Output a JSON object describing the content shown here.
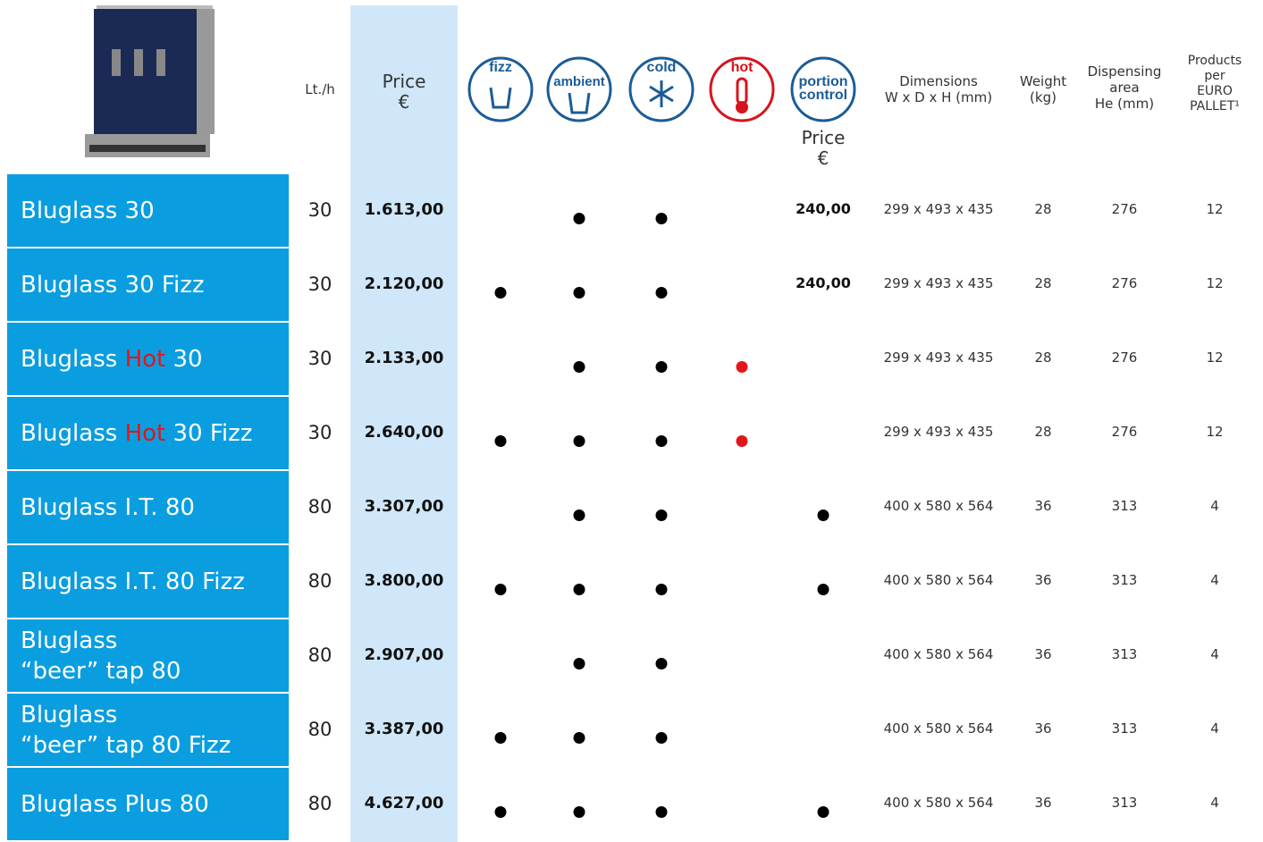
{
  "header": {
    "lt_h": "Lt./h",
    "price": [
      "Price",
      "€"
    ],
    "icons": [
      "fizz",
      "ambient",
      "cold",
      "hot",
      [
        "portion",
        "control"
      ]
    ],
    "portion_price": [
      "Price",
      "€"
    ],
    "dimensions": [
      "Dimensions",
      "W x D x H (mm)"
    ],
    "weight": [
      "Weight",
      "(kg)"
    ],
    "area": [
      "Dispensing",
      "area",
      "He (mm)"
    ],
    "pallet": [
      "Products",
      "per",
      "EURO",
      "PALLET¹"
    ]
  },
  "rows": [
    {
      "name": [
        [
          "Bluglass 30"
        ]
      ],
      "lt_h": "30",
      "price": "1.613,00",
      "features": [
        false,
        true,
        true,
        false
      ],
      "portion": "240,00",
      "dimensions": "299 x 493 x 435",
      "weight": "28",
      "area": "276",
      "pallet": "12"
    },
    {
      "name": [
        [
          "Bluglass 30 Fizz"
        ]
      ],
      "lt_h": "30",
      "price": "2.120,00",
      "features": [
        true,
        true,
        true,
        false
      ],
      "portion": "240,00",
      "dimensions": "299 x 493 x 435",
      "weight": "28",
      "area": "276",
      "pallet": "12"
    },
    {
      "name": [
        [
          "Bluglass ",
          "Hot",
          " 30"
        ]
      ],
      "lt_h": "30",
      "price": "2.133,00",
      "features": [
        false,
        true,
        true,
        true
      ],
      "portion": false,
      "dimensions": "299 x 493 x 435",
      "weight": "28",
      "area": "276",
      "pallet": "12"
    },
    {
      "name": [
        [
          "Bluglass ",
          "Hot",
          " 30 Fizz"
        ]
      ],
      "lt_h": "30",
      "price": "2.640,00",
      "features": [
        true,
        true,
        true,
        true
      ],
      "portion": false,
      "dimensions": "299 x 493 x 435",
      "weight": "28",
      "area": "276",
      "pallet": "12"
    },
    {
      "name": [
        [
          "Bluglass I.T. 80"
        ]
      ],
      "lt_h": "80",
      "price": "3.307,00",
      "features": [
        false,
        true,
        true,
        false
      ],
      "portion": true,
      "dimensions": "400 x 580 x 564",
      "weight": "36",
      "area": "313",
      "pallet": "4"
    },
    {
      "name": [
        [
          "Bluglass I.T. 80 Fizz"
        ]
      ],
      "lt_h": "80",
      "price": "3.800,00",
      "features": [
        true,
        true,
        true,
        false
      ],
      "portion": true,
      "dimensions": "400 x 580 x 564",
      "weight": "36",
      "area": "313",
      "pallet": "4"
    },
    {
      "name": [
        [
          "Bluglass"
        ],
        [
          "“beer” tap 80"
        ]
      ],
      "lt_h": "80",
      "price": "2.907,00",
      "features": [
        false,
        true,
        true,
        false
      ],
      "portion": false,
      "dimensions": "400 x 580 x 564",
      "weight": "36",
      "area": "313",
      "pallet": "4"
    },
    {
      "name": [
        [
          "Bluglass"
        ],
        [
          "“beer” tap 80 Fizz"
        ]
      ],
      "lt_h": "80",
      "price": "3.387,00",
      "features": [
        true,
        true,
        true,
        false
      ],
      "portion": false,
      "dimensions": "400 x 580 x 564",
      "weight": "36",
      "area": "313",
      "pallet": "4"
    },
    {
      "name": [
        [
          "Bluglass Plus 80"
        ]
      ],
      "lt_h": "80",
      "price": "4.627,00",
      "features": [
        true,
        true,
        true,
        false
      ],
      "portion": true,
      "dimensions": "400 x 580 x 564",
      "weight": "36",
      "area": "313",
      "pallet": "4"
    }
  ]
}
